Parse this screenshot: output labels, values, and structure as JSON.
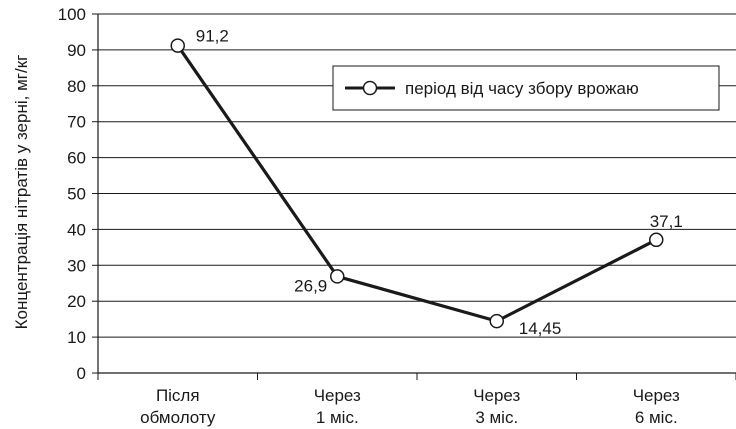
{
  "chart_data": {
    "type": "line",
    "categories": [
      [
        "Після",
        "обмолоту"
      ],
      [
        "Через",
        "1 міс."
      ],
      [
        "Через",
        "3 міс."
      ],
      [
        "Через",
        "6 міс."
      ]
    ],
    "series": [
      {
        "name": "період від часу збору врожаю",
        "values": [
          91.2,
          26.9,
          14.45,
          37.1
        ],
        "data_labels": [
          "91,2",
          "26,9",
          "14,45",
          "37,1"
        ]
      }
    ],
    "ylabel": "Концентрація  нітратів у зерні, мг/кг",
    "ylim": [
      0,
      100
    ],
    "yticks": [
      0,
      10,
      20,
      30,
      40,
      50,
      60,
      70,
      80,
      90,
      100
    ],
    "grid": true,
    "legend_position": "top-right",
    "colors": {
      "line": "#1a1a1a",
      "marker_fill": "#ffffff",
      "grid": "#1a1a1a"
    }
  }
}
